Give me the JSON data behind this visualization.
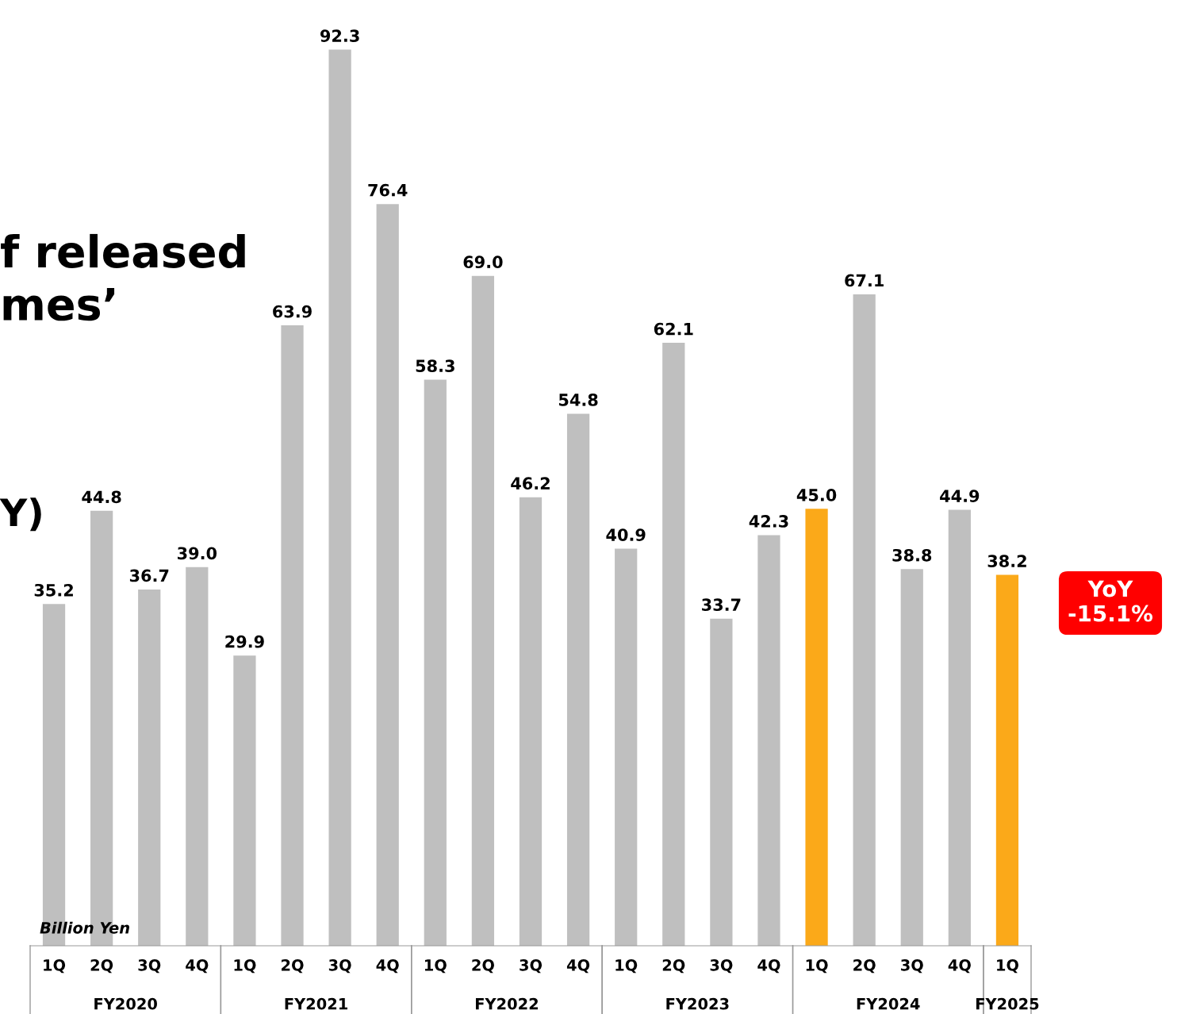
{
  "chart_data": {
    "type": "bar",
    "categories": [
      "1Q",
      "2Q",
      "3Q",
      "4Q",
      "1Q",
      "2Q",
      "3Q",
      "4Q",
      "1Q",
      "2Q",
      "3Q",
      "4Q",
      "1Q",
      "2Q",
      "3Q",
      "4Q",
      "1Q",
      "2Q",
      "3Q",
      "4Q",
      "1Q"
    ],
    "values": [
      35.2,
      44.8,
      36.7,
      39.0,
      29.9,
      63.9,
      92.3,
      76.4,
      58.3,
      69.0,
      46.2,
      54.8,
      40.9,
      62.1,
      33.7,
      42.3,
      45.0,
      67.1,
      38.8,
      44.9,
      38.2
    ],
    "colors": [
      "#bfbfbf",
      "#bfbfbf",
      "#bfbfbf",
      "#bfbfbf",
      "#bfbfbf",
      "#bfbfbf",
      "#bfbfbf",
      "#bfbfbf",
      "#bfbfbf",
      "#bfbfbf",
      "#bfbfbf",
      "#bfbfbf",
      "#bfbfbf",
      "#bfbfbf",
      "#bfbfbf",
      "#bfbfbf",
      "#fba919",
      "#bfbfbf",
      "#bfbfbf",
      "#bfbfbf",
      "#fba919"
    ],
    "value_labels": [
      "35.2",
      "44.8",
      "36.7",
      "39.0",
      "29.9",
      "63.9",
      "92.3",
      "76.4",
      "58.3",
      "69.0",
      "46.2",
      "54.8",
      "40.9",
      "62.1",
      "33.7",
      "42.3",
      "45.0",
      "67.1",
      "38.8",
      "44.9",
      "38.2"
    ],
    "tick_labels": "x",
    "grid": false,
    "annotations": [
      "FY2020",
      "FY2021",
      "FY2022",
      "FY2023",
      "FY2024",
      "FY2025",
      "Billion Yen",
      "YoY\n-15.1%",
      "f released\nmes’",
      "Y)"
    ]
  }
}
